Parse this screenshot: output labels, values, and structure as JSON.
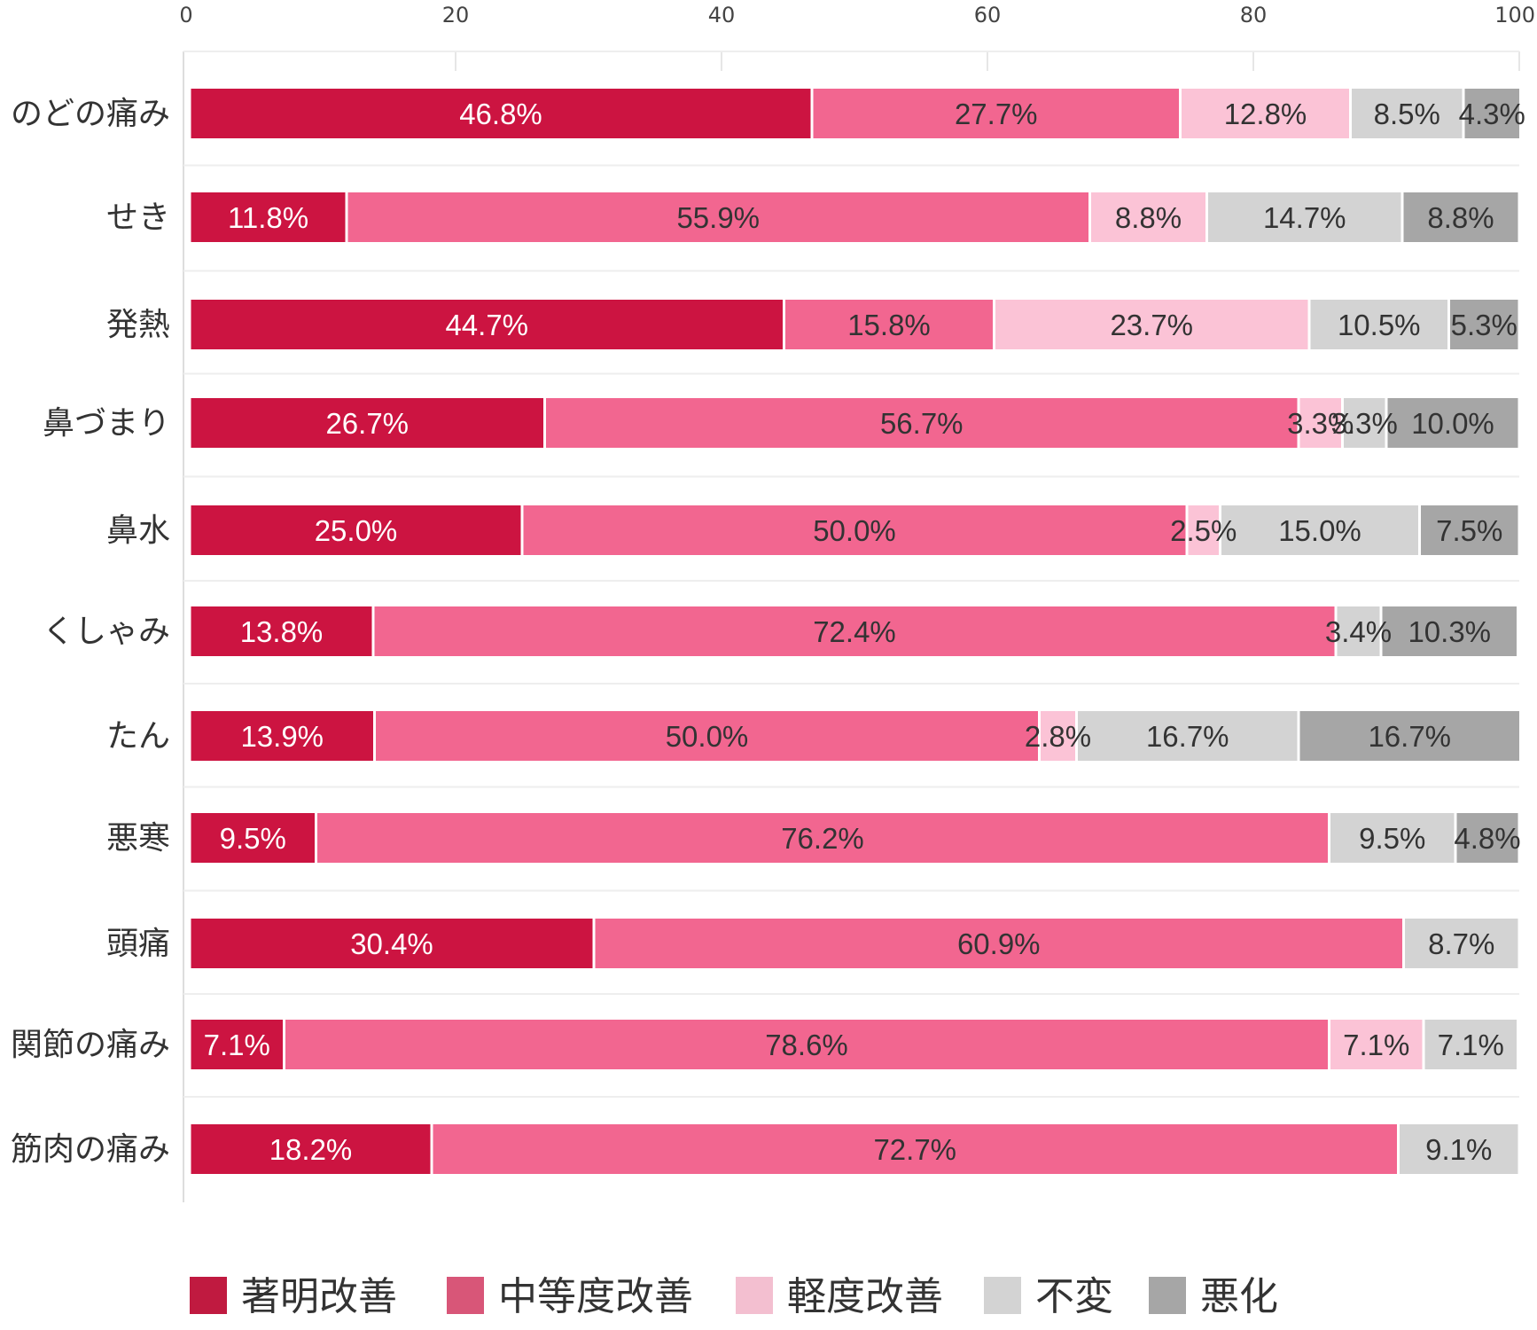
{
  "chart_data": {
    "type": "bar",
    "orientation": "horizontal",
    "stacked": true,
    "xlim": [
      0,
      100
    ],
    "xticks": [
      "0",
      "20",
      "40",
      "60",
      "80",
      "100"
    ],
    "grid": true,
    "legend_position": "bottom",
    "categories": [
      "のどの痛み",
      "せき",
      "発熱",
      "鼻づまり",
      "鼻水",
      "くしゃみ",
      "たん",
      "悪寒",
      "頭痛",
      "関節の痛み",
      "筋肉の痛み"
    ],
    "series": [
      {
        "name": "著明改善",
        "color": "#cc1441",
        "label_color": "#ffffff",
        "values": [
          46.8,
          11.8,
          44.7,
          26.7,
          25.0,
          13.8,
          13.9,
          9.5,
          30.4,
          7.1,
          18.2
        ],
        "labels": [
          "46.8%",
          "11.8%",
          "44.7%",
          "26.7%",
          "25.0%",
          "13.8%",
          "13.9%",
          "9.5%",
          "30.4%",
          "7.1%",
          "18.2%"
        ]
      },
      {
        "name": "中等度改善",
        "color": "#f26690",
        "label_color": "#333333",
        "values": [
          27.7,
          55.9,
          15.8,
          56.7,
          50.0,
          72.4,
          50.0,
          76.2,
          60.9,
          78.6,
          72.7
        ],
        "labels": [
          "27.7%",
          "55.9%",
          "15.8%",
          "56.7%",
          "50.0%",
          "72.4%",
          "50.0%",
          "76.2%",
          "60.9%",
          "78.6%",
          "72.7%"
        ]
      },
      {
        "name": "軽度改善",
        "color": "#fbc3d6",
        "label_color": "#333333",
        "values": [
          12.8,
          8.8,
          23.7,
          3.3,
          2.5,
          0,
          2.8,
          0,
          0,
          7.1,
          0
        ],
        "labels": [
          "12.8%",
          "8.8%",
          "23.7%",
          "3.3%",
          "2.5%",
          "",
          "2.8%",
          "",
          "",
          "7.1%",
          ""
        ]
      },
      {
        "name": "不変",
        "color": "#d3d3d3",
        "label_color": "#333333",
        "values": [
          8.5,
          14.7,
          10.5,
          3.3,
          15.0,
          3.4,
          16.7,
          9.5,
          8.7,
          7.1,
          9.1
        ],
        "labels": [
          "8.5%",
          "14.7%",
          "10.5%",
          "3.3%",
          "15.0%",
          "3.4%",
          "16.7%",
          "9.5%",
          "8.7%",
          "7.1%",
          "9.1%"
        ]
      },
      {
        "name": "悪化",
        "color": "#a6a6a6",
        "label_color": "#333333",
        "values": [
          4.3,
          8.8,
          5.3,
          10.0,
          7.5,
          10.3,
          16.7,
          4.8,
          0,
          0,
          0
        ],
        "labels": [
          "4.3%",
          "8.8%",
          "5.3%",
          "10.0%",
          "7.5%",
          "10.3%",
          "16.7%",
          "4.8%",
          "",
          "",
          ""
        ]
      }
    ],
    "legend_colors": [
      "#c01a40",
      "#d85678",
      "#f3bfd0",
      "#d3d3d3",
      "#a6a6a6"
    ]
  }
}
